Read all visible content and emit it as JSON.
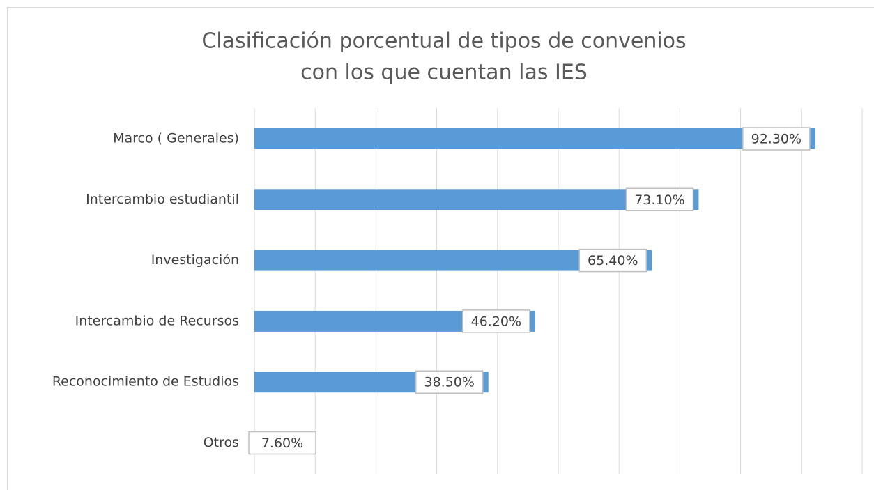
{
  "chart_data": {
    "type": "bar",
    "orientation": "horizontal",
    "title": [
      "Clasificación porcentual de tipos de convenios",
      "con los que cuentan las IES"
    ],
    "categories": [
      "Marco ( Generales)",
      "Intercambio estudiantil",
      "Investigación",
      "Intercambio de Recursos",
      "Reconocimiento de Estudios",
      "Otros"
    ],
    "values": [
      92.3,
      73.1,
      65.4,
      46.2,
      38.5,
      7.6
    ],
    "value_labels": [
      "92.30%",
      "73.10%",
      "65.40%",
      "46.20%",
      "38.50%",
      "7.60%"
    ],
    "color": "#5b9bd5",
    "xlim": [
      0,
      100
    ],
    "xticks": [
      0,
      10,
      20,
      30,
      40,
      50,
      60,
      70,
      80,
      90,
      100
    ],
    "grid": true
  }
}
